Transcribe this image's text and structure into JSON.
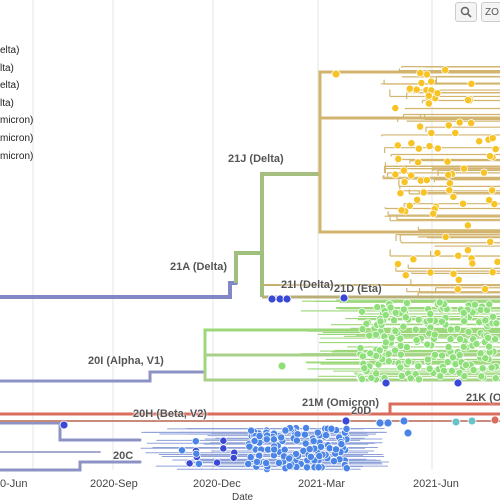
{
  "legend": {
    "items": [
      "elta)",
      "lta)",
      "elta)",
      "lta)",
      "micron)",
      "micron)",
      "micron)"
    ]
  },
  "toolbar": {
    "zoom_icon": "magnifier-zoom-icon",
    "zoom_label": "ZO"
  },
  "x_axis": {
    "title": "Date",
    "ticks": [
      "0-Jun",
      "2020-Sep",
      "2020-Dec",
      "2021-Mar",
      "2021-Jun"
    ]
  },
  "clades": {
    "c21J": "21J (Delta)",
    "c21A": "21A (Delta)",
    "c21I": "21I (Delta)",
    "c21D": "21D (Eta)",
    "c20I": "20I (Alpha, V1)",
    "c20H": "20H (Beta, V2)",
    "c21M": "21M (Omicron)",
    "c20D": "20D",
    "c21K": "21K (O",
    "c20C": "20C"
  },
  "colors": {
    "delta_gold": "#d2b46e",
    "delta_node": "#f7c325",
    "alpha_green": "#9cd77a",
    "alpha_node": "#8fe07a",
    "blue_node": "#4a84e6",
    "dark_blue_node": "#3a48d8",
    "trunk_purple": "#8287c8",
    "omicron_red": "#d96c5c",
    "olive_branch": "#a9b56f",
    "grid": "#e6e6e6"
  }
}
